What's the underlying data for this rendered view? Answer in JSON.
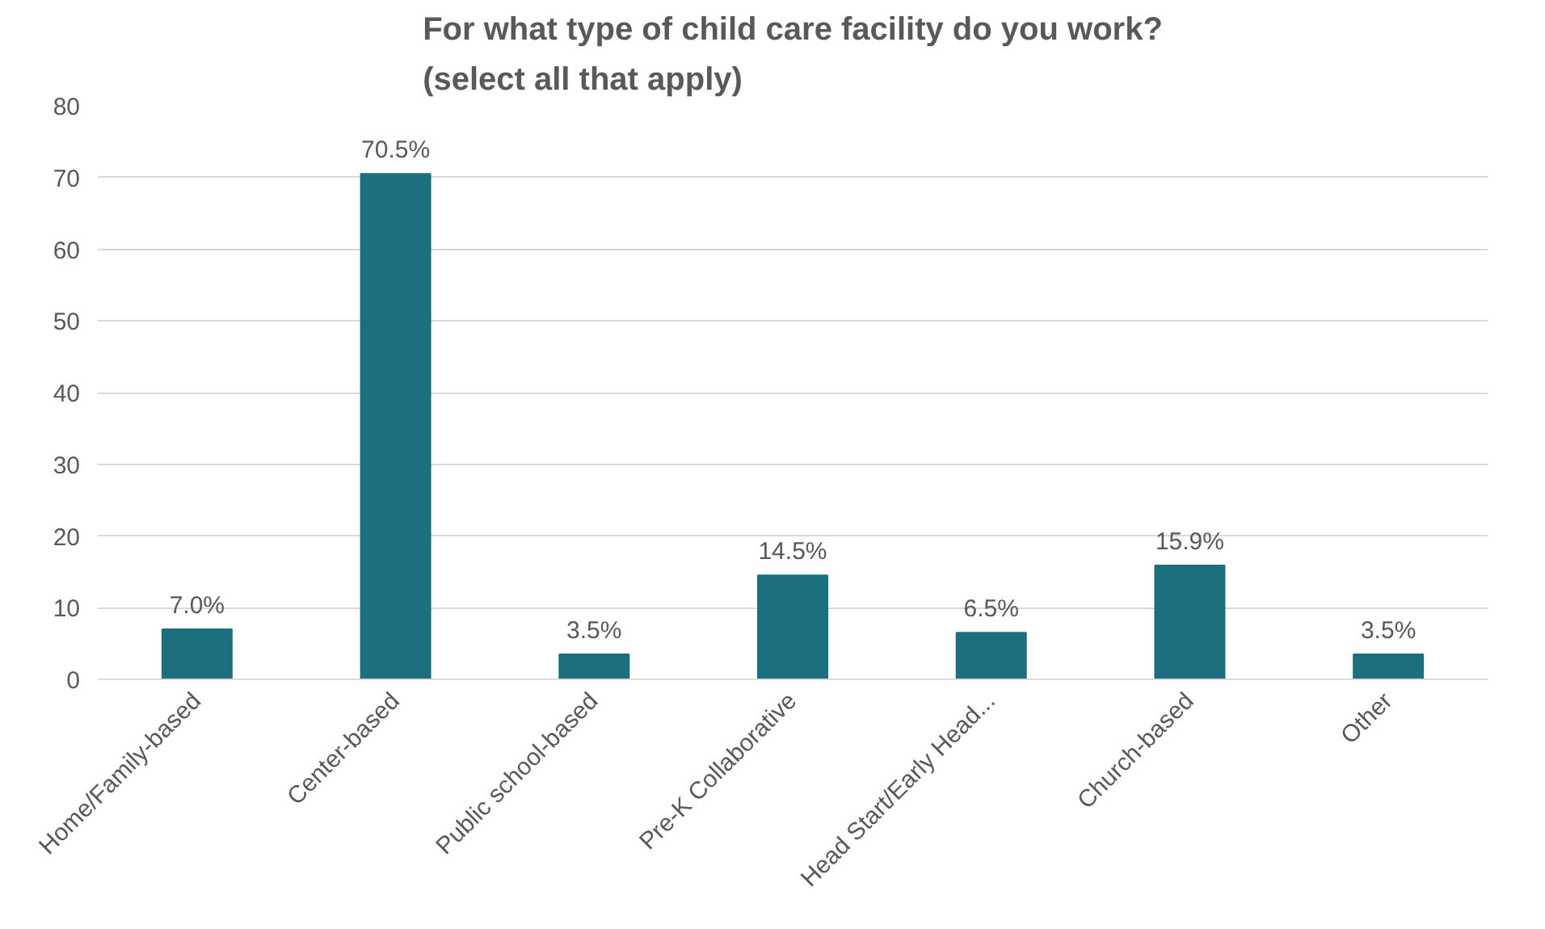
{
  "chart_data": {
    "type": "bar",
    "title": "For what type of child care facility do you work?\n(select all that apply)",
    "categories": [
      "Home/Family-based",
      "Center-based",
      "Public school-based",
      "Pre-K Collaborative",
      "Head Start/Early Head...",
      "Church-based",
      "Other"
    ],
    "values": [
      7.0,
      70.5,
      3.5,
      14.5,
      6.5,
      15.9,
      3.5
    ],
    "value_labels": [
      "7.0%",
      "70.5%",
      "3.5%",
      "14.5%",
      "6.5%",
      "15.9%",
      "3.5%"
    ],
    "color": "#1b6f7f",
    "ylim": [
      0,
      80
    ],
    "yticks": [
      0,
      10,
      20,
      30,
      40,
      50,
      60,
      70,
      80
    ],
    "grid": "y"
  }
}
